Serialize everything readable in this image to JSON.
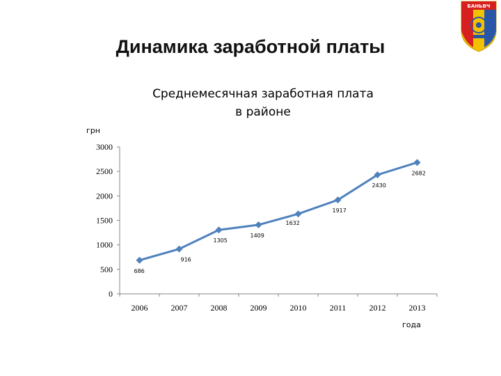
{
  "slide": {
    "title": "Динамика заработной платы",
    "logo_text": "БАНЬВЧ"
  },
  "colors": {
    "series": "#4f81bd",
    "axis": "#868686",
    "logo_yellow": "#f2c200",
    "logo_red": "#d6201f",
    "logo_blue": "#2a56a8"
  },
  "chart_data": {
    "type": "line",
    "title_lines": [
      "Среднемесячная заработная плата",
      "в районе"
    ],
    "ylabel": "грн",
    "xlabel": "года",
    "x": [
      "2006",
      "2007",
      "2008",
      "2009",
      "2010",
      "2011",
      "2012",
      "2013"
    ],
    "series": [
      {
        "values": [
          686,
          916,
          1305,
          1409,
          1632,
          1917,
          2430,
          2682
        ]
      }
    ],
    "data_labels": [
      "686",
      "916",
      "1305",
      "1409",
      "1632",
      "1917",
      "2430",
      "2682"
    ],
    "ylim": [
      0,
      3000
    ],
    "yticks": [
      0,
      500,
      1000,
      1500,
      2000,
      2500,
      3000
    ],
    "grid": false,
    "legend": "none"
  }
}
